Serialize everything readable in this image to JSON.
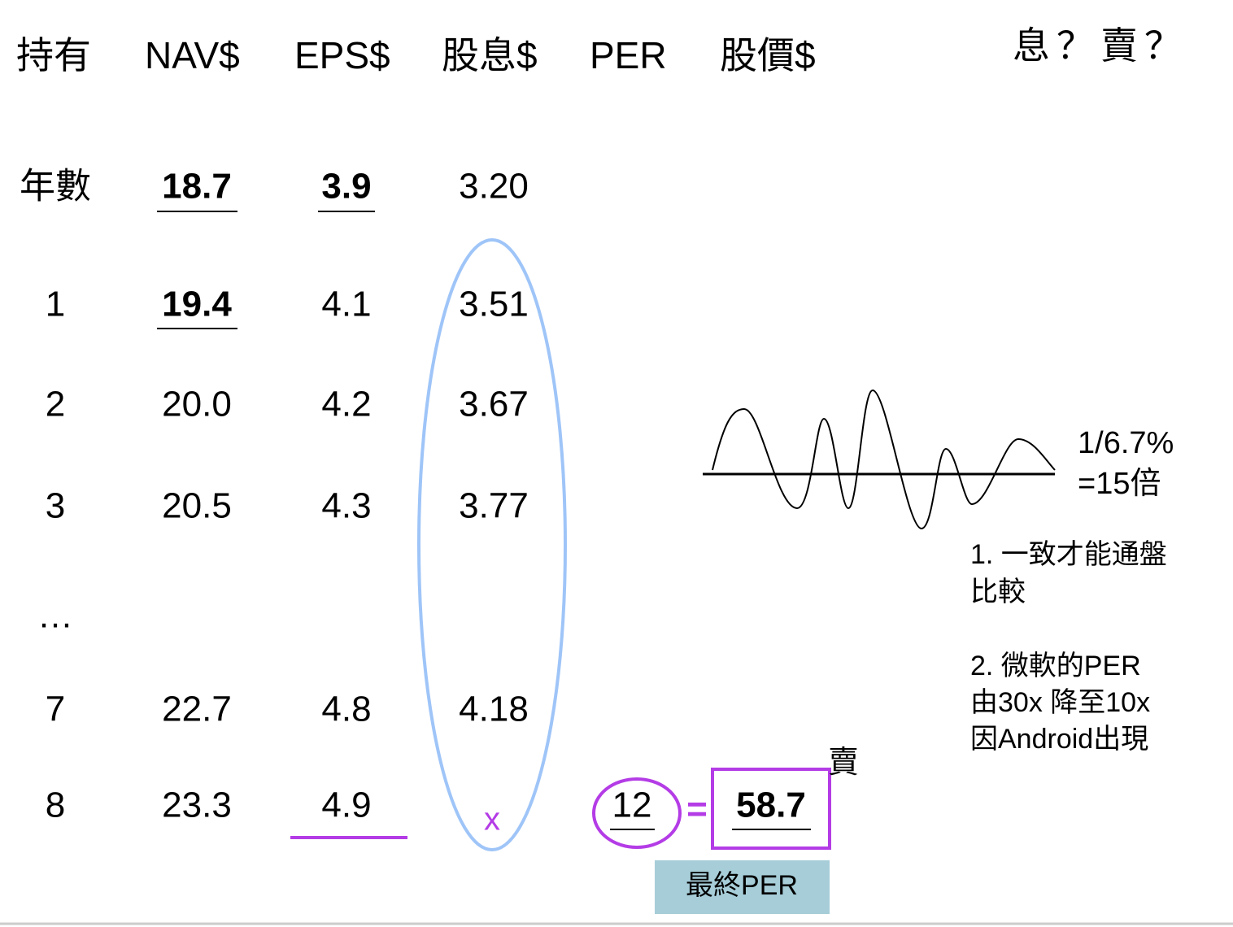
{
  "header": {
    "columns": [
      "持有",
      "NAV$",
      "EPS$",
      "股息$",
      "PER",
      "股價$"
    ],
    "question": "息？賣？"
  },
  "table": {
    "rows": [
      [
        "年數",
        "18.7",
        "3.9",
        "3.20"
      ],
      [
        "1",
        "19.4",
        "4.1",
        "3.51"
      ],
      [
        "2",
        "20.0",
        "4.2",
        "3.67"
      ],
      [
        "3",
        "20.5",
        "4.3",
        "3.77"
      ],
      [
        "…"
      ],
      [
        "7",
        "22.7",
        "4.8",
        "4.18"
      ],
      [
        "8",
        "23.3",
        "4.9",
        "x"
      ]
    ]
  },
  "formula": {
    "per": "12",
    "equals": "=",
    "price": "58.7",
    "action": "賣",
    "label": "最終PER"
  },
  "cycle": {
    "lines": [
      "1/6.7%",
      "=15倍"
    ]
  },
  "notes": [
    [
      "1. 一致才能通盤",
      "比較"
    ],
    [
      "2. 微軟的PER",
      "由30x 降至10x",
      "因Android出現"
    ]
  ]
}
